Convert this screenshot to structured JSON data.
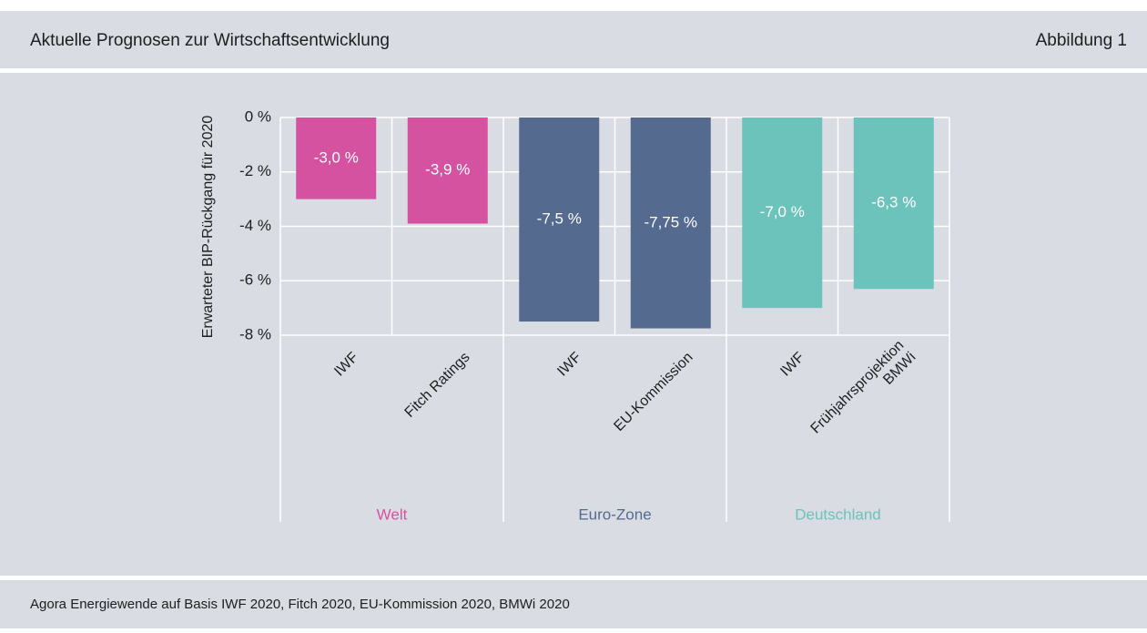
{
  "header": {
    "title": "Aktuelle Prognosen zur Wirtschaftsentwicklung",
    "figure": "Abbildung 1"
  },
  "chart_data": {
    "type": "bar",
    "y_label": "Erwarteter BIP-Rückgang für 2020",
    "ylim": [
      0,
      -8
    ],
    "yticks": [
      {
        "value": 0,
        "label": "0 %"
      },
      {
        "value": -2,
        "label": "-2 %"
      },
      {
        "value": -4,
        "label": "-4 %"
      },
      {
        "value": -6,
        "label": "-6 %"
      },
      {
        "value": -8,
        "label": "-8 %"
      }
    ],
    "grid": true,
    "series": [
      {
        "name": "Welt",
        "color": "#d4529f",
        "categories": [
          "IWF",
          "Fitch Ratings"
        ],
        "values": [
          -3.0,
          -3.9
        ],
        "value_labels": [
          "-3,0 %",
          "-3,9 %"
        ]
      },
      {
        "name": "Euro-Zone",
        "color": "#556a8f",
        "categories": [
          "IWF",
          "EU-Kommission"
        ],
        "values": [
          -7.5,
          -7.75
        ],
        "value_labels": [
          "-7,5 %",
          "-7,75 %"
        ]
      },
      {
        "name": "Deutschland",
        "color": "#6cc3bb",
        "categories": [
          "IWF",
          "Frühjahrsprojektion\nBMWi"
        ],
        "values": [
          -7.0,
          -6.3
        ],
        "value_labels": [
          "-7,0 %",
          "-6,3 %"
        ]
      }
    ]
  },
  "footer": {
    "source": "Agora Energiewende auf Basis IWF 2020, Fitch 2020, EU-Kommission 2020, BMWi 2020"
  }
}
